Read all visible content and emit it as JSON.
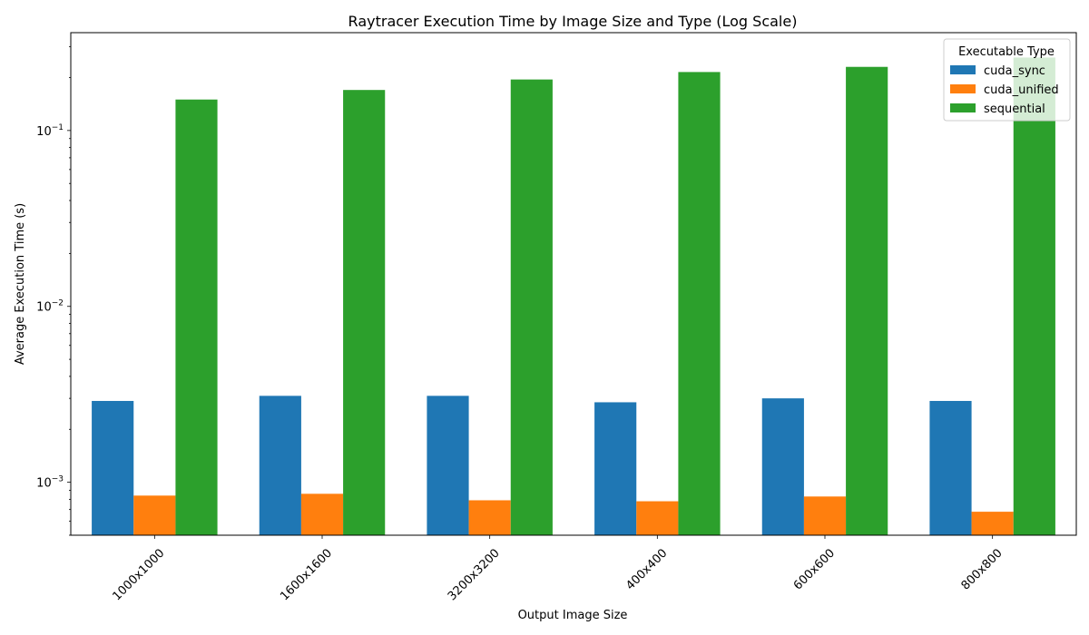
{
  "chart_data": {
    "type": "bar",
    "title": "Raytracer Execution Time by Image Size and Type (Log Scale)",
    "xlabel": "Output Image Size",
    "ylabel": "Average Execution Time (s)",
    "y_scale": "log",
    "ylim": [
      0.0005,
      0.36
    ],
    "y_ticks": [
      {
        "value": 0.001,
        "base": "10",
        "exp": "−3"
      },
      {
        "value": 0.01,
        "base": "10",
        "exp": "−2"
      },
      {
        "value": 0.1,
        "base": "10",
        "exp": "−1"
      }
    ],
    "categories": [
      "1000x1000",
      "1600x1600",
      "3200x3200",
      "400x400",
      "600x600",
      "800x800"
    ],
    "series": [
      {
        "name": "cuda_sync",
        "color": "#1f77b4",
        "values": [
          0.0029,
          0.0031,
          0.0031,
          0.00285,
          0.003,
          0.0029
        ]
      },
      {
        "name": "cuda_unified",
        "color": "#ff7f0e",
        "values": [
          0.00084,
          0.00086,
          0.00079,
          0.00078,
          0.00083,
          0.00068
        ]
      },
      {
        "name": "sequential",
        "color": "#2ca02c",
        "values": [
          0.15,
          0.17,
          0.195,
          0.215,
          0.23,
          0.26
        ]
      }
    ],
    "legend": {
      "title": "Executable Type",
      "position": "top-right"
    },
    "grid": false
  }
}
